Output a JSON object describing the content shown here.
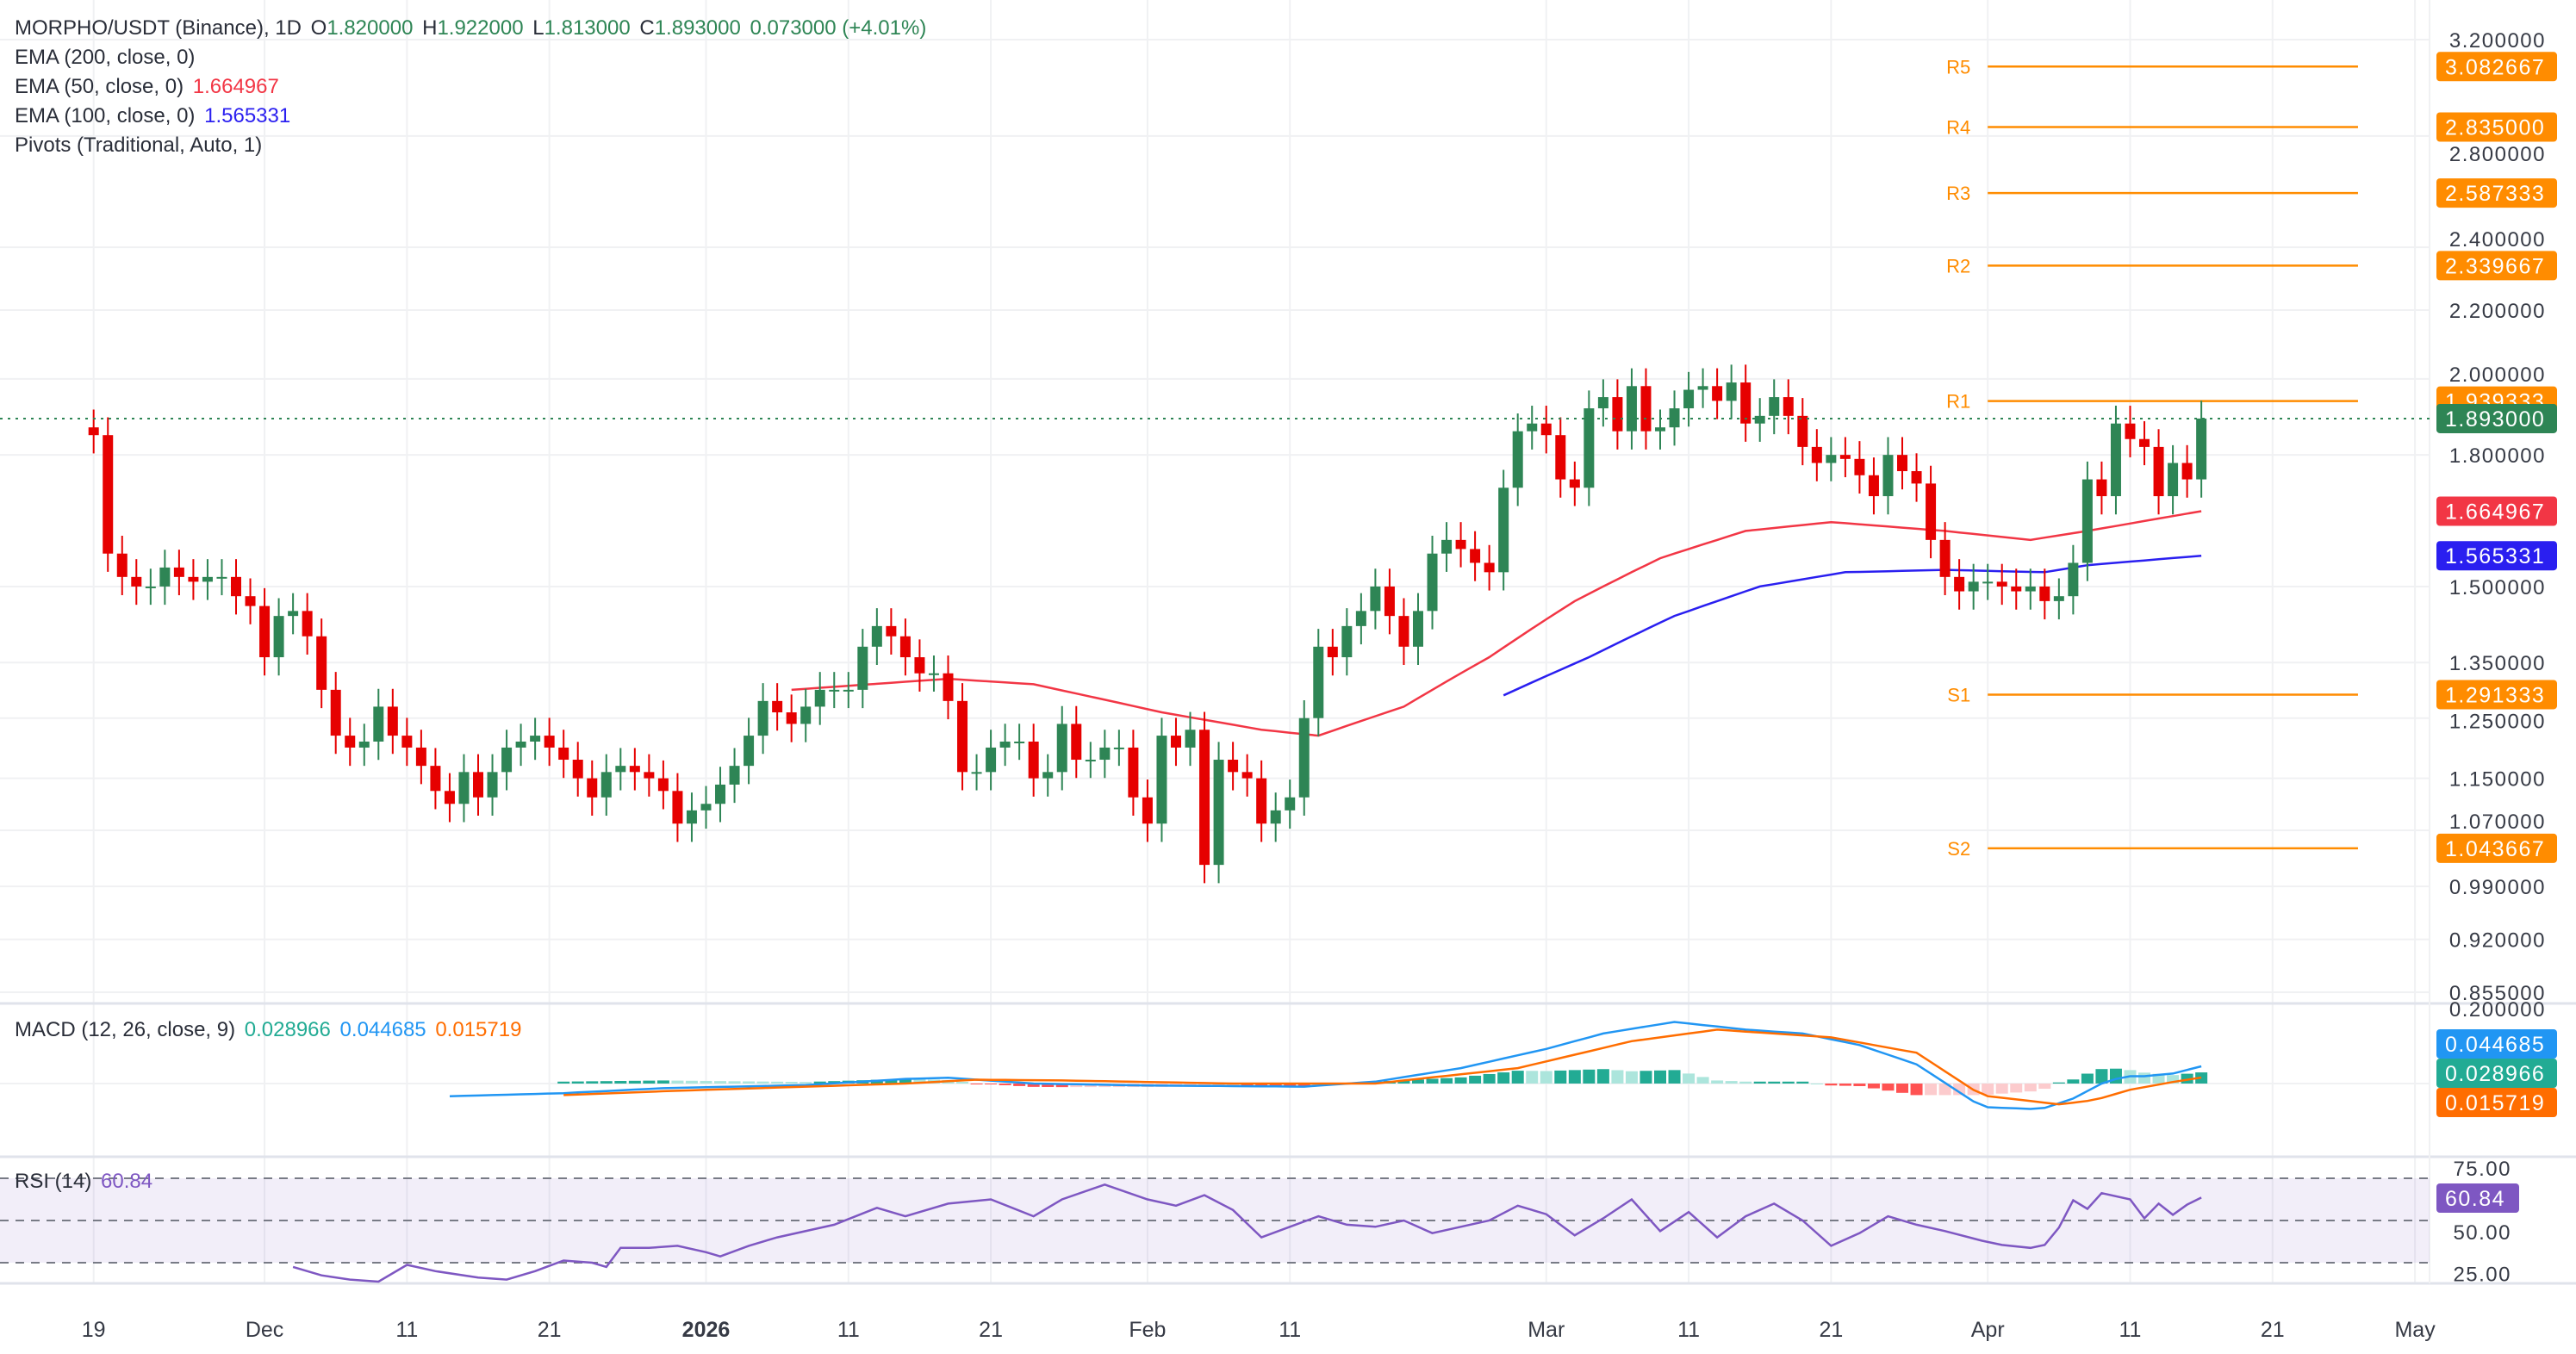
{
  "header": {
    "symbol": "MORPHO/USDT (Binance), 1D",
    "o_label": "O",
    "o": "1.820000",
    "h_label": "H",
    "h": "1.922000",
    "l_label": "L",
    "l": "1.813000",
    "c_label": "C",
    "c": "1.893000",
    "change": "0.073000 (+4.01%)"
  },
  "indicators": {
    "ema200": {
      "label": "EMA (200, close, 0)"
    },
    "ema50": {
      "label": "EMA (50, close, 0)",
      "value": "1.664967",
      "color": "#f23645"
    },
    "ema100": {
      "label": "EMA (100, close, 0)",
      "value": "1.565331",
      "color": "#2a1ff0"
    },
    "pivots": {
      "label": "Pivots (Traditional, Auto, 1)"
    },
    "macd": {
      "label": "MACD (12, 26, close, 9)",
      "hist": "0.028966",
      "macd": "0.044685",
      "signal": "0.015719"
    },
    "rsi": {
      "label": "RSI (14)",
      "value": "60.84"
    }
  },
  "chart_data": {
    "type": "candlestick",
    "title": "MORPHO/USDT (Binance), 1D",
    "scale": "log",
    "ylim": [
      0.855,
      3.2
    ],
    "colors": {
      "up": "#2e8555",
      "down": "#e60000",
      "ema50": "#f23645",
      "ema100": "#2a1ff0",
      "pivot": "#ff8c00",
      "macd": "#2196f3",
      "signal": "#ff6d00",
      "rsi": "#7e57c2",
      "last": "#2e8555"
    },
    "first_date": "Nov 19",
    "closes": [
      1.85,
      1.57,
      1.52,
      1.5,
      1.5,
      1.54,
      1.52,
      1.51,
      1.52,
      1.52,
      1.48,
      1.46,
      1.36,
      1.44,
      1.45,
      1.4,
      1.3,
      1.22,
      1.2,
      1.21,
      1.27,
      1.22,
      1.2,
      1.17,
      1.13,
      1.11,
      1.16,
      1.12,
      1.16,
      1.2,
      1.21,
      1.22,
      1.2,
      1.18,
      1.15,
      1.12,
      1.16,
      1.17,
      1.16,
      1.15,
      1.13,
      1.08,
      1.1,
      1.11,
      1.14,
      1.17,
      1.22,
      1.28,
      1.26,
      1.24,
      1.27,
      1.3,
      1.3,
      1.3,
      1.38,
      1.42,
      1.4,
      1.36,
      1.33,
      1.33,
      1.28,
      1.16,
      1.16,
      1.2,
      1.21,
      1.21,
      1.15,
      1.16,
      1.24,
      1.18,
      1.18,
      1.2,
      1.2,
      1.12,
      1.08,
      1.22,
      1.2,
      1.23,
      1.02,
      1.18,
      1.16,
      1.15,
      1.08,
      1.1,
      1.12,
      1.25,
      1.38,
      1.36,
      1.42,
      1.45,
      1.5,
      1.44,
      1.38,
      1.45,
      1.57,
      1.6,
      1.58,
      1.55,
      1.53,
      1.72,
      1.86,
      1.88,
      1.85,
      1.74,
      1.72,
      1.92,
      1.95,
      1.86,
      1.98,
      1.86,
      1.87,
      1.92,
      1.97,
      1.98,
      1.94,
      1.99,
      1.88,
      1.9,
      1.95,
      1.9,
      1.82,
      1.78,
      1.8,
      1.79,
      1.75,
      1.7,
      1.8,
      1.76,
      1.73,
      1.6,
      1.52,
      1.49,
      1.51,
      1.51,
      1.5,
      1.49,
      1.5,
      1.47,
      1.48,
      1.55,
      1.74,
      1.7,
      1.88,
      1.84,
      1.82,
      1.7,
      1.78,
      1.74,
      1.893
    ],
    "first_open": 1.87,
    "last_price": "1.893000",
    "ema50": [
      [
        49,
        1.3
      ],
      [
        60,
        1.32
      ],
      [
        66,
        1.31
      ],
      [
        75,
        1.26
      ],
      [
        82,
        1.23
      ],
      [
        86,
        1.22
      ],
      [
        92,
        1.27
      ],
      [
        98,
        1.36
      ],
      [
        104,
        1.47
      ],
      [
        110,
        1.56
      ],
      [
        116,
        1.62
      ],
      [
        122,
        1.64
      ],
      [
        130,
        1.62
      ],
      [
        136,
        1.6
      ],
      [
        140,
        1.62
      ],
      [
        148,
        1.664967
      ]
    ],
    "ema100": [
      [
        99,
        1.29
      ],
      [
        105,
        1.36
      ],
      [
        111,
        1.44
      ],
      [
        117,
        1.5
      ],
      [
        123,
        1.53
      ],
      [
        130,
        1.535
      ],
      [
        137,
        1.53
      ],
      [
        140,
        1.545
      ],
      [
        148,
        1.565331
      ]
    ],
    "pivots": {
      "start_index": 133,
      "end_index": 159,
      "levels": [
        {
          "name": "R5",
          "value": 3.082667,
          "label": "3.082667"
        },
        {
          "name": "R4",
          "value": 2.835,
          "label": "2.835000"
        },
        {
          "name": "R3",
          "value": 2.587333,
          "label": "2.587333"
        },
        {
          "name": "R2",
          "value": 2.339667,
          "label": "2.339667"
        },
        {
          "name": "R1",
          "value": 1.939333,
          "label": "1.939333"
        },
        {
          "name": "S1",
          "value": 1.291333,
          "label": "1.291333"
        },
        {
          "name": "S2",
          "value": 1.043667,
          "label": "1.043667"
        }
      ]
    },
    "price_ticks": [
      {
        "value": 3.2,
        "label": "3.200000"
      },
      {
        "value": 2.8,
        "label": "2.800000"
      },
      {
        "value": 2.4,
        "label": "2.400000"
      },
      {
        "value": 2.2,
        "label": "2.200000"
      },
      {
        "value": 2.0,
        "label": "2.000000"
      },
      {
        "value": 1.8,
        "label": "1.800000"
      },
      {
        "value": 1.5,
        "label": "1.500000"
      },
      {
        "value": 1.35,
        "label": "1.350000"
      },
      {
        "value": 1.25,
        "label": "1.250000"
      },
      {
        "value": 1.15,
        "label": "1.150000"
      },
      {
        "value": 1.07,
        "label": "1.070000"
      },
      {
        "value": 0.99,
        "label": "0.990000"
      },
      {
        "value": 0.92,
        "label": "0.920000"
      },
      {
        "value": 0.855,
        "label": "0.855000"
      }
    ],
    "price_tags": [
      {
        "value": 1.893,
        "label": "1.893000",
        "color": "#2e8555"
      },
      {
        "value": 1.664967,
        "label": "1.664967",
        "color": "#f23645"
      },
      {
        "value": 1.565331,
        "label": "1.565331",
        "color": "#2a1ff0"
      }
    ],
    "x_ticks": [
      {
        "index": 0,
        "label": "19"
      },
      {
        "index": 12,
        "label": "Dec"
      },
      {
        "index": 22,
        "label": "11"
      },
      {
        "index": 32,
        "label": "21"
      },
      {
        "index": 43,
        "label": "2026",
        "bold": true
      },
      {
        "index": 53,
        "label": "11"
      },
      {
        "index": 63,
        "label": "21"
      },
      {
        "index": 74,
        "label": "Feb"
      },
      {
        "index": 84,
        "label": "11"
      },
      {
        "index": 102,
        "label": "Mar"
      },
      {
        "index": 112,
        "label": "11"
      },
      {
        "index": 122,
        "label": "21"
      },
      {
        "index": 133,
        "label": "Apr"
      },
      {
        "index": 143,
        "label": "11"
      },
      {
        "index": 153,
        "label": "21"
      },
      {
        "index": 163,
        "label": "May"
      }
    ],
    "macd": {
      "top_label": "0.200000",
      "macd_line": [
        [
          25,
          -0.033
        ],
        [
          33,
          -0.025
        ],
        [
          40,
          -0.012
        ],
        [
          50,
          -0.004
        ],
        [
          57,
          0.012
        ],
        [
          60,
          0.015
        ],
        [
          66,
          0.0
        ],
        [
          74,
          -0.005
        ],
        [
          85,
          -0.008
        ],
        [
          90,
          0.005
        ],
        [
          96,
          0.04
        ],
        [
          102,
          0.09
        ],
        [
          106,
          0.13
        ],
        [
          111,
          0.16
        ],
        [
          116,
          0.14
        ],
        [
          120,
          0.13
        ],
        [
          124,
          0.1
        ],
        [
          128,
          0.05
        ],
        [
          132.6,
          -0.061
        ],
        [
          136.7,
          -0.067
        ],
        [
          139,
          -0.039
        ],
        [
          141,
          0.0
        ],
        [
          142.6,
          0.019
        ],
        [
          144,
          0.019
        ],
        [
          146,
          0.026
        ],
        [
          148,
          0.044685
        ]
      ],
      "signal_line": [
        [
          33,
          -0.03
        ],
        [
          40,
          -0.02
        ],
        [
          50,
          -0.008
        ],
        [
          57,
          0.0
        ],
        [
          62,
          0.01
        ],
        [
          68,
          0.008
        ],
        [
          80,
          0.0
        ],
        [
          90,
          0.0
        ],
        [
          100,
          0.04
        ],
        [
          108,
          0.11
        ],
        [
          114,
          0.14
        ],
        [
          122,
          0.12
        ],
        [
          128,
          0.08
        ],
        [
          132.6,
          -0.031
        ],
        [
          138,
          -0.054
        ],
        [
          140.5,
          -0.043
        ],
        [
          143,
          -0.016
        ],
        [
          146,
          0.004
        ],
        [
          148,
          0.015719
        ]
      ],
      "tags": [
        {
          "label": "0.044685",
          "color": "#2196f3"
        },
        {
          "label": "0.028966",
          "color": "#22ab94"
        },
        {
          "label": "0.015719",
          "color": "#ff6d00"
        }
      ]
    },
    "rsi": {
      "levels": [
        70,
        50,
        30
      ],
      "tick_labels": [
        {
          "value": 75,
          "label": "75.00"
        },
        {
          "value": 50,
          "label": "50.00"
        },
        {
          "value": 25,
          "label": "25.00"
        }
      ],
      "tag": "60.84",
      "series": [
        [
          14,
          28
        ],
        [
          16,
          24
        ],
        [
          18,
          22
        ],
        [
          20,
          21
        ],
        [
          22,
          29
        ],
        [
          24,
          26
        ],
        [
          27,
          23
        ],
        [
          29,
          22
        ],
        [
          31,
          26
        ],
        [
          33,
          31
        ],
        [
          35,
          30
        ],
        [
          36,
          28
        ],
        [
          37,
          37
        ],
        [
          39,
          37
        ],
        [
          41,
          38
        ],
        [
          43,
          35
        ],
        [
          44,
          33
        ],
        [
          46,
          38
        ],
        [
          48,
          42
        ],
        [
          52,
          48
        ],
        [
          55,
          56
        ],
        [
          57,
          52
        ],
        [
          60,
          58
        ],
        [
          63,
          60
        ],
        [
          66,
          52
        ],
        [
          68,
          60
        ],
        [
          71,
          67
        ],
        [
          74,
          60
        ],
        [
          76,
          57
        ],
        [
          78,
          62
        ],
        [
          80,
          55
        ],
        [
          82,
          42
        ],
        [
          84,
          47
        ],
        [
          86,
          52
        ],
        [
          88,
          48
        ],
        [
          90,
          47
        ],
        [
          92,
          50
        ],
        [
          94,
          44
        ],
        [
          96,
          47
        ],
        [
          98,
          50
        ],
        [
          100,
          57
        ],
        [
          102,
          53
        ],
        [
          104,
          43
        ],
        [
          106,
          51
        ],
        [
          108,
          60
        ],
        [
          110,
          45
        ],
        [
          112,
          54
        ],
        [
          114,
          42
        ],
        [
          116,
          52
        ],
        [
          118,
          58
        ],
        [
          120,
          50
        ],
        [
          122,
          38
        ],
        [
          124,
          44
        ],
        [
          126,
          52
        ],
        [
          128,
          48
        ],
        [
          130,
          45
        ],
        [
          132.6,
          40.4
        ],
        [
          134,
          38.4
        ],
        [
          136,
          37
        ],
        [
          137,
          38.4
        ],
        [
          138,
          46.6
        ],
        [
          139,
          59.6
        ],
        [
          140,
          55.5
        ],
        [
          141,
          63
        ],
        [
          143,
          60
        ],
        [
          144,
          51
        ],
        [
          145,
          58
        ],
        [
          146,
          52.7
        ],
        [
          147,
          57.5
        ],
        [
          148,
          60.84
        ]
      ]
    }
  }
}
